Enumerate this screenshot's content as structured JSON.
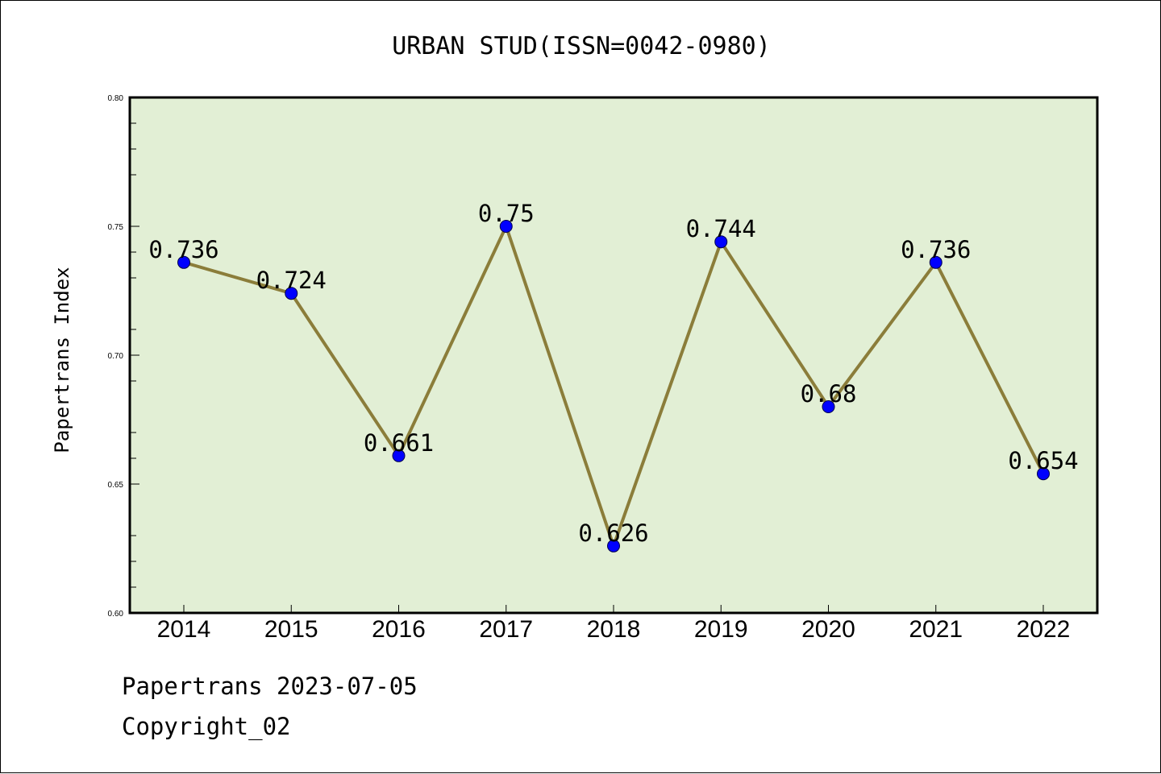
{
  "chart_data": {
    "type": "line",
    "title": "URBAN STUD(ISSN=0042-0980)",
    "ylabel": "Papertrans Index",
    "xlabel": "",
    "categories": [
      "2014",
      "2015",
      "2016",
      "2017",
      "2018",
      "2019",
      "2020",
      "2021",
      "2022"
    ],
    "values": [
      0.736,
      0.724,
      0.661,
      0.75,
      0.626,
      0.744,
      0.68,
      0.736,
      0.654
    ],
    "data_labels": [
      "0.736",
      "0.724",
      "0.661",
      "0.75",
      "0.626",
      "0.744",
      "0.68",
      "0.736",
      "0.654"
    ],
    "ylim": [
      0.6,
      0.8
    ],
    "yticks": [
      0.6,
      0.65,
      0.7,
      0.75,
      0.8
    ],
    "ytick_labels": [
      "0.60",
      "0.65",
      "0.70",
      "0.75",
      "0.80"
    ],
    "grid": false,
    "colors": {
      "plot_background": "#e2efd5",
      "line": "#8b7d3a",
      "marker": "#0000ff"
    }
  },
  "footer": {
    "source": "Papertrans 2023-07-05",
    "copyright": "Copyright_02"
  }
}
